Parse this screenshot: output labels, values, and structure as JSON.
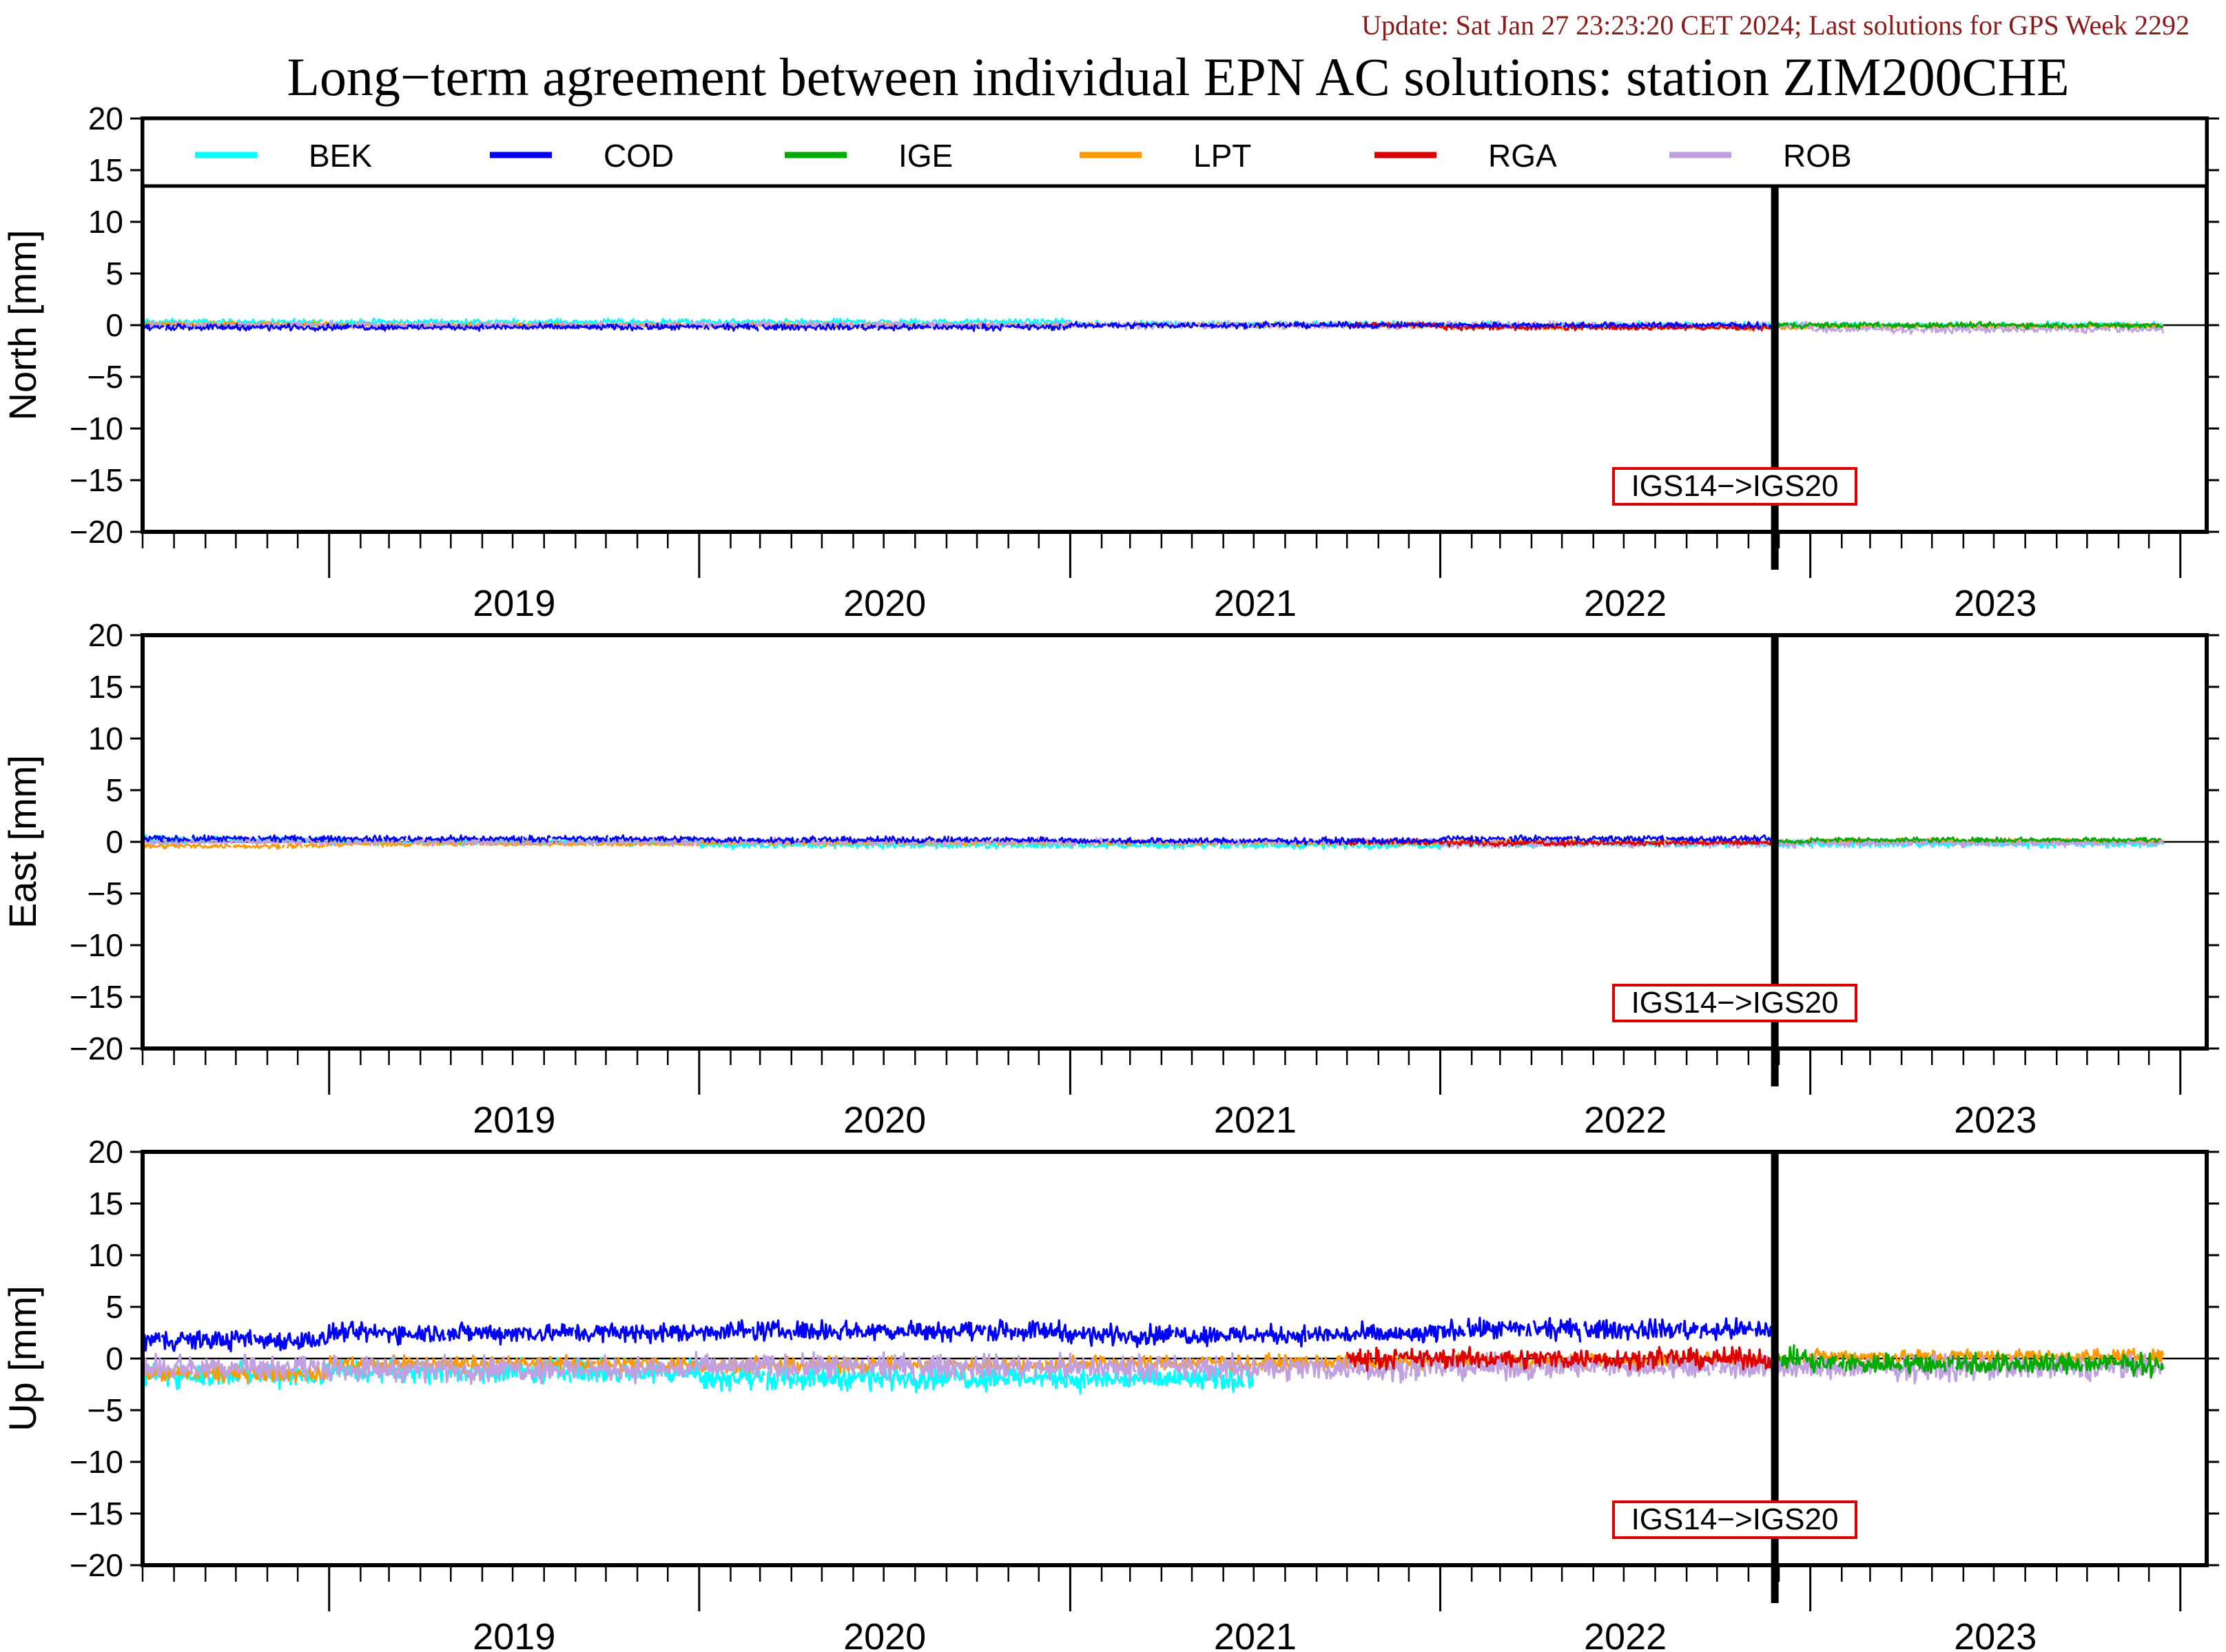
{
  "update_line": "Update: Sat Jan 27 23:23:20 CET 2024; Last solutions for GPS Week 2292",
  "chart_data": {
    "type": "line",
    "title": "Long−term agreement between individual EPN AC solutions: station ZIM200CHE",
    "x_range": [
      "2018-07-01",
      "2023-12-15"
    ],
    "year_labels": [
      "2019",
      "2020",
      "2021",
      "2022",
      "2023"
    ],
    "ylim": [
      -20,
      20
    ],
    "yticks": [
      20,
      15,
      10,
      5,
      0,
      -5,
      -10,
      -15,
      -20
    ],
    "ytick_labels": [
      "20",
      "15",
      "10",
      "5",
      "0",
      "−5",
      "−10",
      "−15",
      "−20"
    ],
    "legend": {
      "placement": "top",
      "entries": [
        {
          "name": "BEK",
          "color": "#00ffff"
        },
        {
          "name": "COD",
          "color": "#0000ff"
        },
        {
          "name": "IGE",
          "color": "#00aa00"
        },
        {
          "name": "LPT",
          "color": "#ff9900"
        },
        {
          "name": "RGA",
          "color": "#dd0000"
        },
        {
          "name": "ROB",
          "color": "#c0a0e0"
        }
      ]
    },
    "frame_change": {
      "date": "2022-11-27",
      "label": "IGS14−>IGS20"
    },
    "panels": [
      {
        "ylabel": "North [mm]",
        "series": [
          {
            "name": "BEK",
            "active": [
              "2018-07-01",
              "2023-12-15"
            ],
            "baseline_by_year": [
              0.3,
              0.3,
              0.3,
              0.1,
              0.0,
              0.0
            ],
            "noise": 0.25
          },
          {
            "name": "COD",
            "active": [
              "2018-07-01",
              "2022-11-27"
            ],
            "baseline_by_year": [
              -0.2,
              -0.2,
              -0.2,
              0.0,
              0.0
            ],
            "noise": 0.25
          },
          {
            "name": "IGE",
            "active": [
              "2022-11-27",
              "2023-12-15"
            ],
            "baseline_by_year": [
              0,
              0,
              0,
              0,
              0,
              0.0
            ],
            "noise": 0.25
          },
          {
            "name": "LPT",
            "active": [
              "2018-07-01",
              "2023-12-15"
            ],
            "baseline_by_year": [
              0.1,
              0.0,
              0.0,
              0.0,
              -0.2,
              -0.1
            ],
            "noise": 0.2
          },
          {
            "name": "RGA",
            "active": [
              "2021-10-01",
              "2022-11-27"
            ],
            "baseline_by_year": [
              0,
              0,
              0,
              0,
              -0.2,
              0
            ],
            "noise": 0.25
          },
          {
            "name": "ROB",
            "active": [
              "2018-07-01",
              "2023-12-15"
            ],
            "baseline_by_year": [
              0.0,
              0.0,
              0.0,
              0.0,
              0.0,
              -0.4
            ],
            "noise": 0.3
          }
        ]
      },
      {
        "ylabel": "East [mm]",
        "series": [
          {
            "name": "BEK",
            "active": [
              "2018-07-01",
              "2023-12-15"
            ],
            "baseline_by_year": [
              0.2,
              0.0,
              -0.3,
              -0.3,
              -0.2,
              -0.2
            ],
            "noise": 0.3
          },
          {
            "name": "COD",
            "active": [
              "2018-07-01",
              "2022-11-27"
            ],
            "baseline_by_year": [
              0.3,
              0.3,
              0.2,
              0.1,
              0.3
            ],
            "noise": 0.25
          },
          {
            "name": "IGE",
            "active": [
              "2022-11-27",
              "2023-12-15"
            ],
            "baseline_by_year": [
              0,
              0,
              0,
              0,
              0,
              0.2
            ],
            "noise": 0.2
          },
          {
            "name": "LPT",
            "active": [
              "2018-07-01",
              "2023-12-15"
            ],
            "baseline_by_year": [
              -0.4,
              -0.2,
              -0.1,
              -0.1,
              0.0,
              0.1
            ],
            "noise": 0.2
          },
          {
            "name": "RGA",
            "active": [
              "2021-10-01",
              "2022-11-27"
            ],
            "baseline_by_year": [
              0,
              0,
              0,
              0,
              -0.1,
              0
            ],
            "noise": 0.25
          },
          {
            "name": "ROB",
            "active": [
              "2018-07-01",
              "2023-12-15"
            ],
            "baseline_by_year": [
              0.0,
              0.0,
              0.0,
              0.0,
              -0.2,
              -0.1
            ],
            "noise": 0.3
          }
        ]
      },
      {
        "ylabel": "Up [mm]",
        "series": [
          {
            "name": "BEK",
            "active": [
              "2018-07-01",
              "2021-06-30"
            ],
            "baseline_by_year": [
              -1.5,
              -1.2,
              -1.8,
              -2.0
            ],
            "noise": 1.0
          },
          {
            "name": "COD",
            "active": [
              "2018-07-01",
              "2022-11-27"
            ],
            "baseline_by_year": [
              1.8,
              2.5,
              2.7,
              2.3,
              2.8
            ],
            "noise": 0.8
          },
          {
            "name": "IGE",
            "active": [
              "2022-11-27",
              "2023-12-15"
            ],
            "baseline_by_year": [
              0,
              0,
              0,
              0,
              0,
              -0.5
            ],
            "noise": 0.9
          },
          {
            "name": "LPT",
            "active": [
              "2018-07-01",
              "2023-12-15"
            ],
            "baseline_by_year": [
              -1.5,
              -0.5,
              -0.6,
              -0.4,
              -0.2,
              0.2
            ],
            "noise": 0.6
          },
          {
            "name": "RGA",
            "active": [
              "2021-10-01",
              "2022-11-27"
            ],
            "baseline_by_year": [
              0,
              0,
              0,
              0,
              0.0,
              0
            ],
            "noise": 0.8
          },
          {
            "name": "ROB",
            "active": [
              "2018-07-01",
              "2023-12-15"
            ],
            "baseline_by_year": [
              -0.8,
              -1.0,
              -0.8,
              -0.9,
              -0.8,
              -0.9
            ],
            "noise": 1.0
          }
        ]
      }
    ]
  }
}
